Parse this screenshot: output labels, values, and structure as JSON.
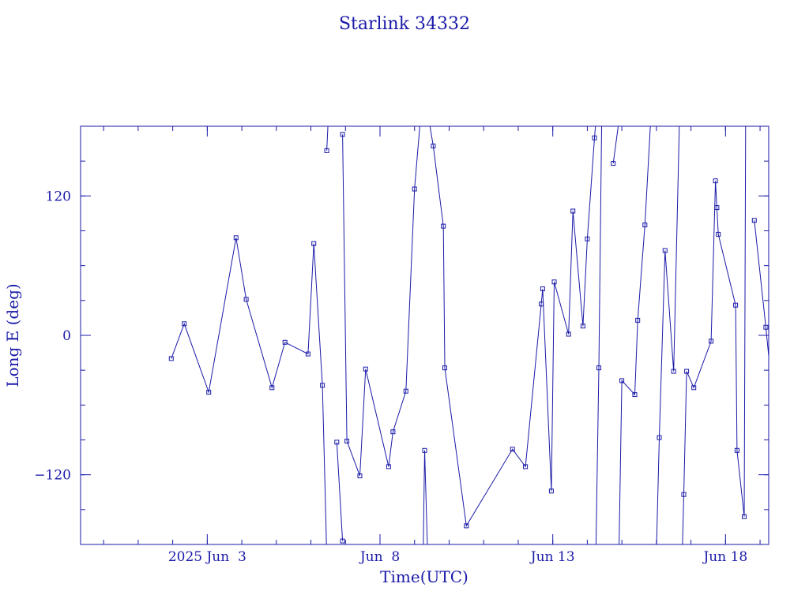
{
  "chart_data": {
    "type": "line",
    "title": "Starlink 34332",
    "xlabel": "Time(UTC)",
    "ylabel": "Long E (deg)",
    "xlim": [
      "2025-05-30T08:00:00Z",
      "2025-06-19T06:00:00Z"
    ],
    "ylim": [
      -180,
      180
    ],
    "x_ticks": [
      {
        "label": "2025 Jun  3",
        "value": "2025-06-03T00:00:00Z"
      },
      {
        "label": "Jun  8",
        "value": "2025-06-08T00:00:00Z"
      },
      {
        "label": "Jun 13",
        "value": "2025-06-13T00:00:00Z"
      },
      {
        "label": "Jun 18",
        "value": "2025-06-18T00:00:00Z"
      }
    ],
    "y_ticks": [
      -120,
      0,
      120
    ],
    "grid": false,
    "colors": {
      "line": "#1a1aa8",
      "frame": "#1a1aa8",
      "text": "#1a1aa8"
    },
    "series": [
      {
        "marker": "square",
        "points": [
          {
            "x": "2025-06-01T23:00:00Z",
            "y": -20
          },
          {
            "x": "2025-06-02T08:00:00Z",
            "y": 10
          },
          {
            "x": "2025-06-03T01:00:00Z",
            "y": -49
          },
          {
            "x": "2025-06-03T20:00:00Z",
            "y": 84
          },
          {
            "x": "2025-06-04T03:00:00Z",
            "y": 31
          },
          {
            "x": "2025-06-04T21:00:00Z",
            "y": -45
          },
          {
            "x": "2025-06-05T06:00:00Z",
            "y": -6
          },
          {
            "x": "2025-06-05T22:00:00Z",
            "y": -16
          },
          {
            "x": "2025-06-06T02:00:00Z",
            "y": 79
          },
          {
            "x": "2025-06-06T08:00:00Z",
            "y": -43
          },
          {
            "x": "2025-06-06T11:00:00Z",
            "y": -190,
            "break": true
          },
          {
            "x": "2025-06-06T11:00:00Z",
            "y": 159
          },
          {
            "x": "2025-06-06T12:00:00Z",
            "y": 185,
            "break": true
          },
          {
            "x": "2025-06-06T18:00:00Z",
            "y": -92
          },
          {
            "x": "2025-06-06T22:00:00Z",
            "y": -177,
            "break": true
          },
          {
            "x": "2025-06-06T22:00:00Z",
            "y": 173
          },
          {
            "x": "2025-06-07T01:00:00Z",
            "y": -91
          },
          {
            "x": "2025-06-07T10:00:00Z",
            "y": -121
          },
          {
            "x": "2025-06-07T14:00:00Z",
            "y": -29
          },
          {
            "x": "2025-06-08T06:00:00Z",
            "y": -113
          },
          {
            "x": "2025-06-08T09:00:00Z",
            "y": -83
          },
          {
            "x": "2025-06-08T18:00:00Z",
            "y": -48
          },
          {
            "x": "2025-06-09T00:00:00Z",
            "y": 126
          },
          {
            "x": "2025-06-09T04:00:00Z",
            "y": 185,
            "break": true
          },
          {
            "x": "2025-06-09T06:00:00Z",
            "y": -185
          },
          {
            "x": "2025-06-09T07:00:00Z",
            "y": -99
          },
          {
            "x": "2025-06-09T09:00:00Z",
            "y": -185,
            "break": true
          },
          {
            "x": "2025-06-09T10:00:00Z",
            "y": 185
          },
          {
            "x": "2025-06-09T13:00:00Z",
            "y": 163
          },
          {
            "x": "2025-06-09T20:00:00Z",
            "y": 94
          },
          {
            "x": "2025-06-09T21:00:00Z",
            "y": -28
          },
          {
            "x": "2025-06-10T12:00:00Z",
            "y": -164
          },
          {
            "x": "2025-06-11T20:00:00Z",
            "y": -98
          },
          {
            "x": "2025-06-12T05:00:00Z",
            "y": -113
          },
          {
            "x": "2025-06-12T16:00:00Z",
            "y": 27
          },
          {
            "x": "2025-06-12T17:00:00Z",
            "y": 40
          },
          {
            "x": "2025-06-12T23:00:00Z",
            "y": -134
          },
          {
            "x": "2025-06-13T01:00:00Z",
            "y": 46
          },
          {
            "x": "2025-06-13T11:00:00Z",
            "y": 1
          },
          {
            "x": "2025-06-13T14:00:00Z",
            "y": 107
          },
          {
            "x": "2025-06-13T21:00:00Z",
            "y": 8
          },
          {
            "x": "2025-06-14T00:00:00Z",
            "y": 83
          },
          {
            "x": "2025-06-14T05:00:00Z",
            "y": 170
          },
          {
            "x": "2025-06-14T06:00:00Z",
            "y": 185,
            "break": true
          },
          {
            "x": "2025-06-14T06:00:00Z",
            "y": -185
          },
          {
            "x": "2025-06-14T08:00:00Z",
            "y": -28
          },
          {
            "x": "2025-06-14T10:00:00Z",
            "y": 185,
            "break": true
          },
          {
            "x": "2025-06-14T18:00:00Z",
            "y": 148
          },
          {
            "x": "2025-06-14T22:00:00Z",
            "y": 185,
            "break": true
          },
          {
            "x": "2025-06-14T22:00:00Z",
            "y": -185
          },
          {
            "x": "2025-06-15T00:00:00Z",
            "y": -39
          },
          {
            "x": "2025-06-15T09:00:00Z",
            "y": -51
          },
          {
            "x": "2025-06-15T11:00:00Z",
            "y": 13
          },
          {
            "x": "2025-06-15T16:00:00Z",
            "y": 95
          },
          {
            "x": "2025-06-15T20:00:00Z",
            "y": 185,
            "break": true
          },
          {
            "x": "2025-06-16T00:00:00Z",
            "y": -185
          },
          {
            "x": "2025-06-16T02:00:00Z",
            "y": -88
          },
          {
            "x": "2025-06-16T06:00:00Z",
            "y": 73
          },
          {
            "x": "2025-06-16T12:00:00Z",
            "y": -31
          },
          {
            "x": "2025-06-16T16:00:00Z",
            "y": 185,
            "break": true
          },
          {
            "x": "2025-06-16T18:00:00Z",
            "y": -185
          },
          {
            "x": "2025-06-16T19:00:00Z",
            "y": -137
          },
          {
            "x": "2025-06-16T21:00:00Z",
            "y": -31
          },
          {
            "x": "2025-06-17T02:00:00Z",
            "y": -45
          },
          {
            "x": "2025-06-17T14:00:00Z",
            "y": -5
          },
          {
            "x": "2025-06-17T17:00:00Z",
            "y": 133
          },
          {
            "x": "2025-06-17T18:00:00Z",
            "y": 110
          },
          {
            "x": "2025-06-17T19:00:00Z",
            "y": 87
          },
          {
            "x": "2025-06-18T07:00:00Z",
            "y": 26
          },
          {
            "x": "2025-06-18T08:00:00Z",
            "y": -99
          },
          {
            "x": "2025-06-18T13:00:00Z",
            "y": -156
          },
          {
            "x": "2025-06-18T14:00:00Z",
            "y": 185,
            "break": true
          },
          {
            "x": "2025-06-18T20:00:00Z",
            "y": 99
          },
          {
            "x": "2025-06-19T04:00:00Z",
            "y": 7
          },
          {
            "x": "2025-06-19T16:00:00Z",
            "y": -144
          },
          {
            "x": "2025-06-19T19:00:00Z",
            "y": -133
          },
          {
            "x": "2025-06-19T21:00:00Z",
            "y": -156
          },
          {
            "x": "2025-06-20T00:00:00Z",
            "y": -148
          }
        ]
      }
    ]
  }
}
